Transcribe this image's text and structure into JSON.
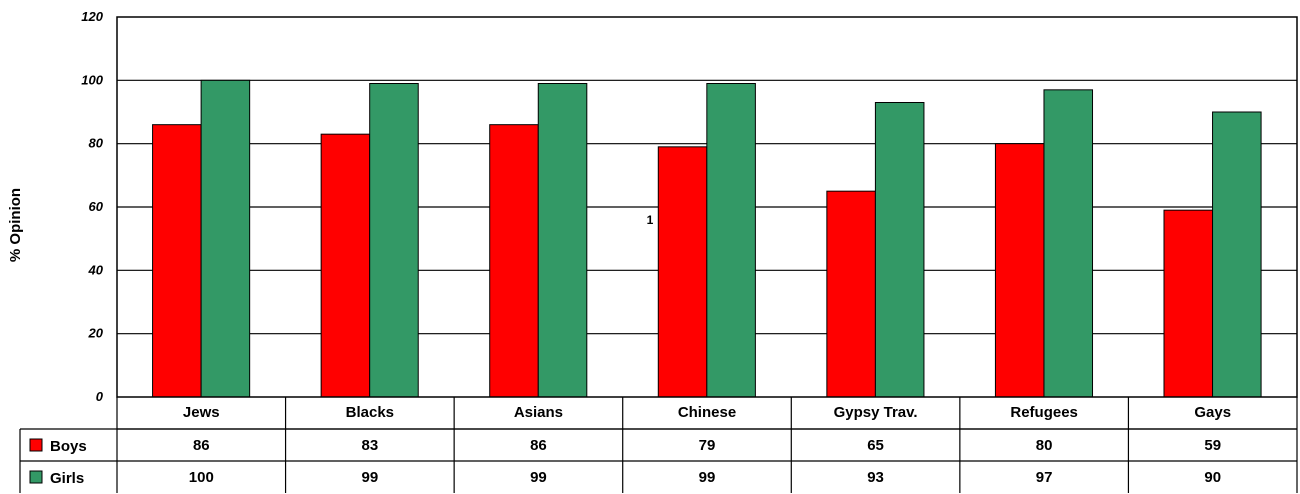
{
  "chart_data": {
    "type": "bar",
    "categories": [
      "Jews",
      "Blacks",
      "Asians",
      "Chinese",
      "Gypsy Trav.",
      "Refugees",
      "Gays"
    ],
    "series": [
      {
        "name": "Boys",
        "color": "#ff0000",
        "values": [
          86,
          83,
          86,
          79,
          65,
          80,
          59
        ]
      },
      {
        "name": "Girls",
        "color": "#339966",
        "values": [
          100,
          99,
          99,
          99,
          93,
          97,
          90
        ]
      }
    ],
    "ylabel": "% Opinion",
    "ylim": [
      0,
      120
    ],
    "yticks": [
      0,
      20,
      40,
      60,
      80,
      100,
      120
    ],
    "grid": true,
    "legend": "data-table-left",
    "annotation": "1"
  }
}
